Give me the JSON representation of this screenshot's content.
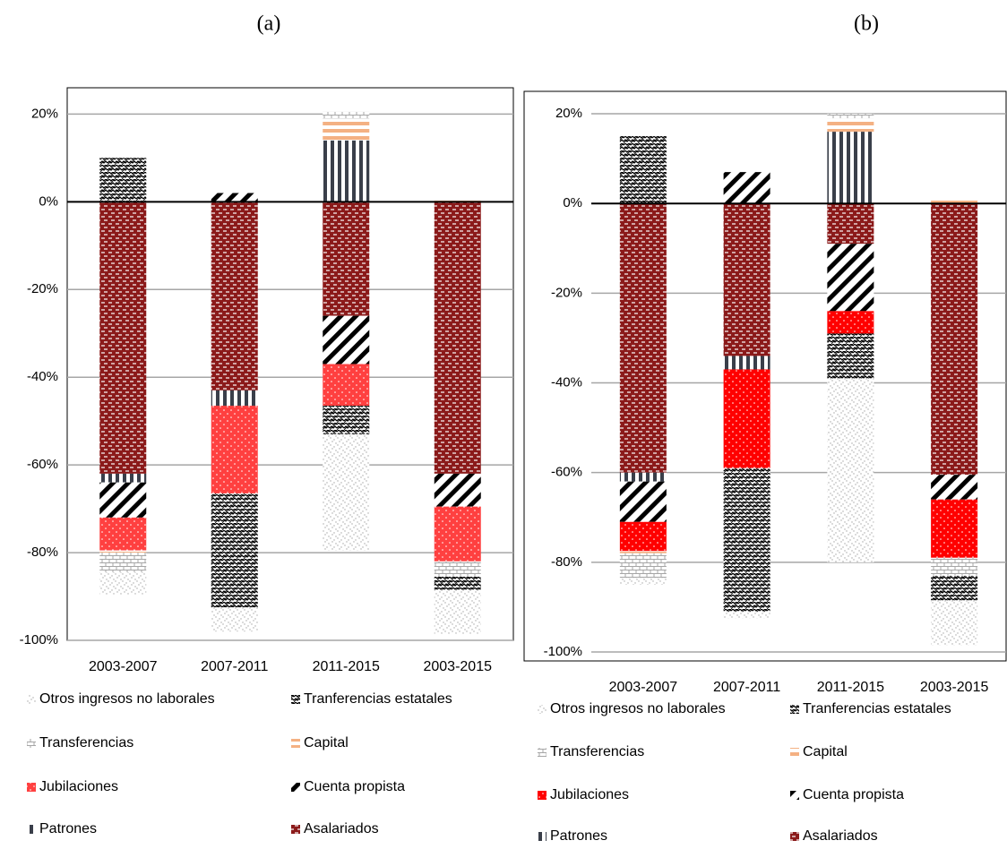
{
  "chart_data": [
    {
      "type": "bar",
      "stacked": true,
      "subtitle": "(a)",
      "categories": [
        "2003-2007",
        "2007-2011",
        "2011-2015",
        "2003-2015"
      ],
      "ylim": [
        -100,
        26
      ],
      "yticks": [
        {
          "value": -100,
          "label": "-100%"
        },
        {
          "value": -80,
          "label": "-80%"
        },
        {
          "value": -60,
          "label": "-60%"
        },
        {
          "value": -40,
          "label": "-40%"
        },
        {
          "value": -20,
          "label": "-20%"
        },
        {
          "value": 0,
          "label": "0%"
        },
        {
          "value": 20,
          "label": "20%"
        }
      ],
      "grid": true,
      "series": [
        {
          "name": "Asalariados",
          "color": "#8b1a1a",
          "values": [
            -62,
            -43,
            -26,
            -62
          ]
        },
        {
          "name": "Patrones",
          "color": "#3a3f4a",
          "values": [
            -2,
            -3.5,
            14,
            0
          ]
        },
        {
          "name": "Cuenta propista",
          "color": "#000000",
          "values": [
            -8,
            2,
            -11,
            -7.5
          ]
        },
        {
          "name": "Jubilaciones",
          "color": "#ff4040",
          "values": [
            -7.5,
            -20,
            -9.5,
            -12.5
          ]
        },
        {
          "name": "Capital",
          "color": "#f4b183",
          "values": [
            -0.5,
            0,
            5,
            0.7
          ]
        },
        {
          "name": "Transferencias",
          "color": "#a6a6a6",
          "values": [
            -4.5,
            0,
            1.5,
            -3.5
          ]
        },
        {
          "name": "Tranferencias estatales",
          "color": "#000000",
          "values": [
            10,
            -26,
            -6.5,
            -3
          ]
        },
        {
          "name": "Otros ingresos no laborales",
          "color": "#a6a6a6",
          "values": [
            -5,
            -5.5,
            -26.5,
            -10
          ]
        }
      ]
    },
    {
      "type": "bar",
      "stacked": true,
      "subtitle": "(b)",
      "categories": [
        "2003-2007",
        "2007-2011",
        "2011-2015",
        "2003-2015"
      ],
      "ylim": [
        -102,
        25
      ],
      "yticks": [
        {
          "value": -100,
          "label": "-100%"
        },
        {
          "value": -80,
          "label": "-80%"
        },
        {
          "value": -60,
          "label": "-60%"
        },
        {
          "value": -40,
          "label": "-40%"
        },
        {
          "value": -20,
          "label": "-20%"
        },
        {
          "value": 0,
          "label": "0%"
        },
        {
          "value": 20,
          "label": "20%"
        }
      ],
      "grid": true,
      "series": [
        {
          "name": "Asalariados",
          "color": "#8b1a1a",
          "values": [
            -60,
            -34,
            -9,
            -60.5
          ]
        },
        {
          "name": "Patrones",
          "color": "#3a3f4a",
          "values": [
            -2,
            -3,
            16,
            0
          ]
        },
        {
          "name": "Cuenta propista",
          "color": "#000000",
          "values": [
            -9,
            7,
            -15,
            -5.5
          ]
        },
        {
          "name": "Jubilaciones",
          "color": "#ff0000",
          "values": [
            -6.5,
            -22,
            -5,
            -13
          ]
        },
        {
          "name": "Capital",
          "color": "#f4b183",
          "values": [
            -0.5,
            0,
            3,
            1
          ]
        },
        {
          "name": "Transferencias",
          "color": "#a6a6a6",
          "values": [
            -5.5,
            0,
            1,
            -4
          ]
        },
        {
          "name": "Tranferencias estatales",
          "color": "#000000",
          "values": [
            15,
            -32,
            -10,
            -5.5
          ]
        },
        {
          "name": "Otros ingresos no laborales",
          "color": "#a6a6a6",
          "values": [
            -1.5,
            -1.5,
            -41,
            -10
          ]
        }
      ]
    }
  ]
}
